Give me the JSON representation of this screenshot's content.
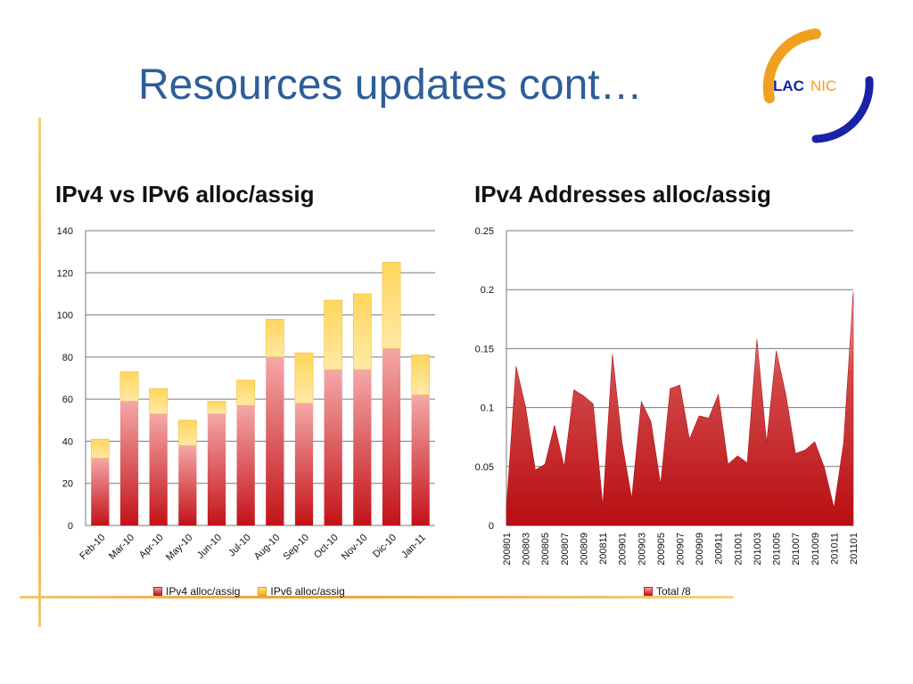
{
  "slide": {
    "title": "Resources updates cont…"
  },
  "logo": {
    "text_lac": "LAC",
    "text_nic": "NIC"
  },
  "chart_data": [
    {
      "type": "bar",
      "stacked": true,
      "title": "IPv4 vs IPv6 alloc/assig",
      "categories": [
        "Feb-10",
        "Mar-10",
        "Apr-10",
        "May-10",
        "Jun-10",
        "Jul-10",
        "Aug-10",
        "Sep-10",
        "Oct-10",
        "Nov-10",
        "Dic-10",
        "Jan-11"
      ],
      "series": [
        {
          "name": "IPv4 alloc/assig",
          "color": "#c8141c",
          "values": [
            32,
            59,
            53,
            38,
            53,
            57,
            80,
            58,
            74,
            74,
            84,
            62
          ]
        },
        {
          "name": "IPv6 alloc/assig",
          "color": "#f5b21c",
          "values": [
            9,
            14,
            12,
            12,
            6,
            12,
            18,
            24,
            33,
            36,
            41,
            19
          ]
        }
      ],
      "ylim": [
        0,
        140
      ],
      "yticks": [
        0,
        20,
        40,
        60,
        80,
        100,
        120,
        140
      ],
      "grid": true,
      "legend": "bottom"
    },
    {
      "type": "area",
      "title": "IPv4 Addresses alloc/assig",
      "x": [
        "200801",
        "200802",
        "200803",
        "200804",
        "200805",
        "200806",
        "200807",
        "200808",
        "200809",
        "200810",
        "200811",
        "200812",
        "200901",
        "200902",
        "200903",
        "200904",
        "200905",
        "200906",
        "200907",
        "200908",
        "200909",
        "200910",
        "200911",
        "200912",
        "201001",
        "201002",
        "201003",
        "201004",
        "201005",
        "201006",
        "201007",
        "201008",
        "201009",
        "201010",
        "201011",
        "201012",
        "201101"
      ],
      "xticklabels": [
        "200801",
        "200803",
        "200805",
        "200807",
        "200809",
        "200811",
        "200901",
        "200903",
        "200905",
        "200907",
        "200909",
        "200911",
        "201001",
        "201003",
        "201005",
        "201007",
        "201009",
        "201011",
        "201101"
      ],
      "series": [
        {
          "name": "Total /8",
          "color": "#c8141c",
          "values": [
            0.015,
            0.135,
            0.1,
            0.047,
            0.052,
            0.085,
            0.05,
            0.115,
            0.11,
            0.103,
            0.017,
            0.145,
            0.07,
            0.023,
            0.105,
            0.088,
            0.035,
            0.116,
            0.119,
            0.073,
            0.093,
            0.091,
            0.111,
            0.052,
            0.059,
            0.053,
            0.158,
            0.07,
            0.148,
            0.111,
            0.061,
            0.064,
            0.071,
            0.049,
            0.015,
            0.07,
            0.198
          ]
        }
      ],
      "ylim": [
        0,
        0.25
      ],
      "yticks": [
        "0",
        "0.05",
        "0.1",
        "0.15",
        "0.2",
        "0.25"
      ],
      "grid": true,
      "legend": "bottom"
    }
  ]
}
